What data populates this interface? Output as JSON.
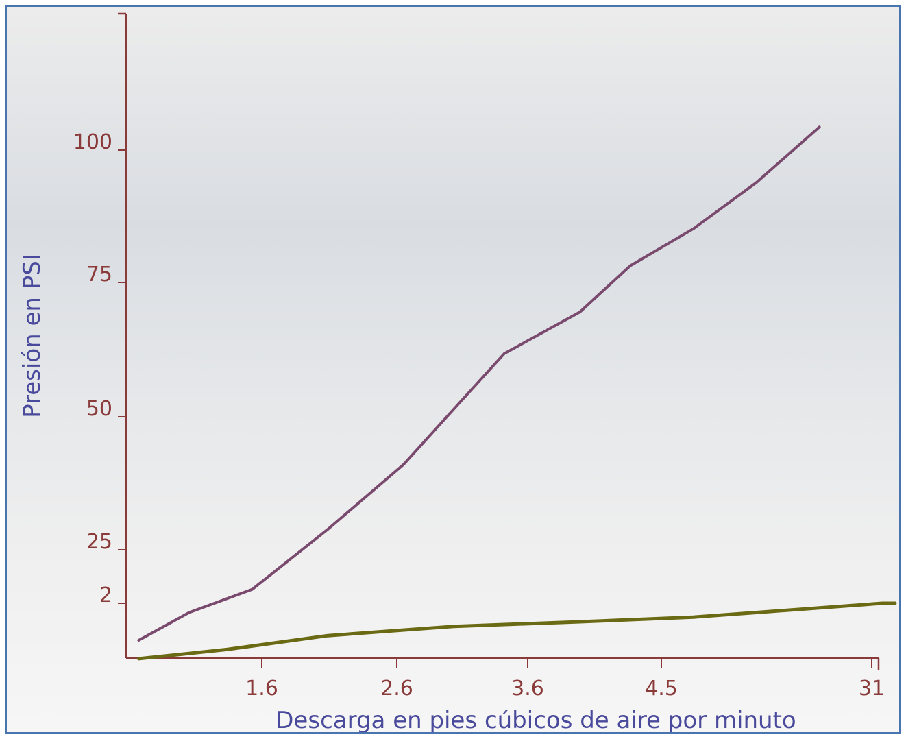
{
  "chart_data": {
    "type": "line",
    "title": "",
    "xlabel": "Descarga en pies cúbicos de aire por minuto",
    "ylabel": "Presión en PSI",
    "x_tick_labels": [
      "1.6",
      "2.6",
      "3.6",
      "4.5",
      "31"
    ],
    "y_tick_labels": [
      "2",
      "25",
      "50",
      "75",
      "100"
    ],
    "grid": false,
    "legend": "none",
    "colors": {
      "axis": "#8b3a3a",
      "series_1": "#7a4a6e",
      "series_2": "#6b6a14",
      "axis_label": "#4a4a9c"
    },
    "series": [
      {
        "x": [
          0.1,
          0.5,
          1.0,
          1.6,
          2.2,
          2.6,
          3.0,
          3.6,
          4.0,
          4.5,
          5.0,
          5.5
        ],
        "values": [
          -6,
          0,
          5,
          18,
          32,
          44,
          56,
          65,
          75,
          83,
          93,
          105
        ]
      },
      {
        "x": [
          0.1,
          0.8,
          1.6,
          2.6,
          3.6,
          4.5,
          5.0,
          5.5,
          6.0,
          6.1
        ],
        "values": [
          -10,
          -8,
          -5,
          -3,
          -2,
          -1,
          0,
          1,
          2,
          2
        ]
      }
    ]
  }
}
